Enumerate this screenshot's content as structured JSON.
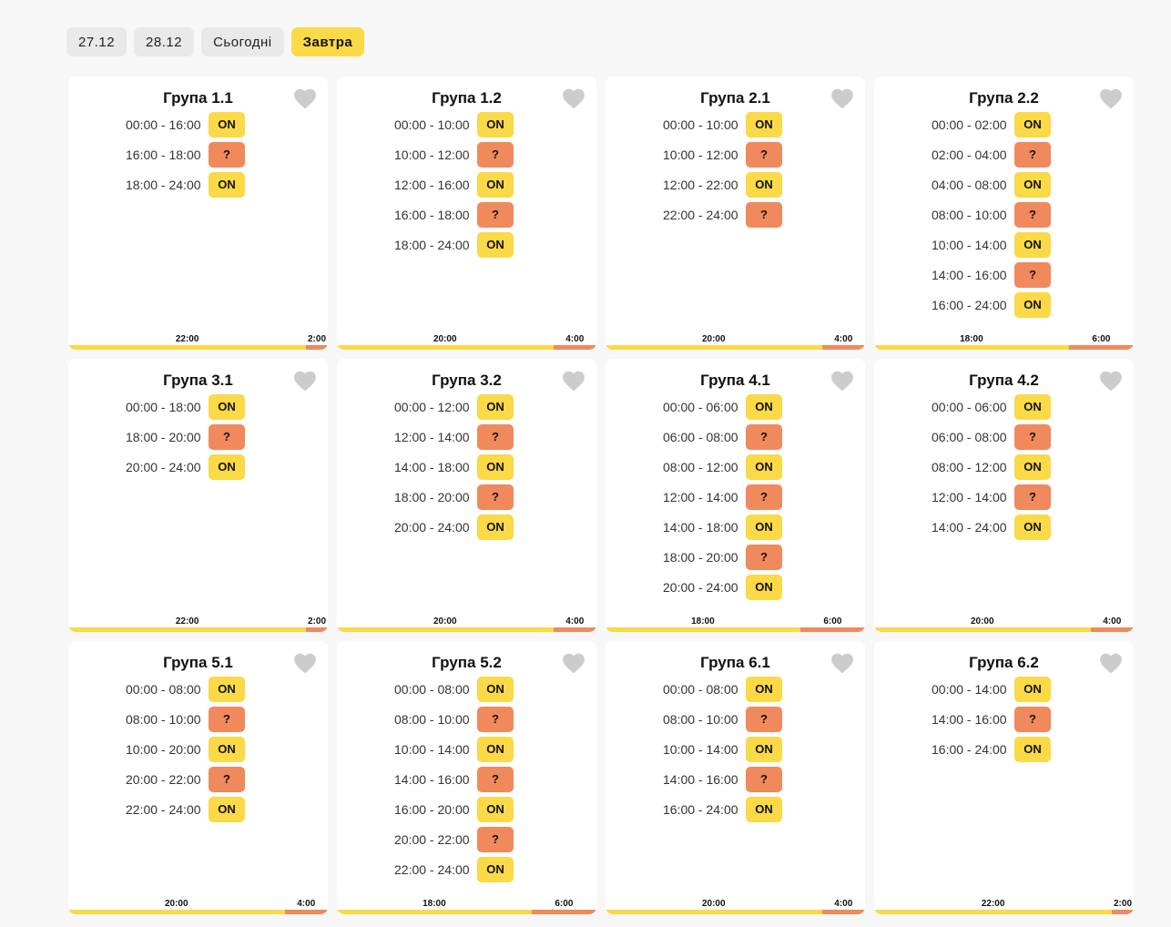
{
  "tabs": [
    {
      "label": "27.12",
      "active": false
    },
    {
      "label": "28.12",
      "active": false
    },
    {
      "label": "Сьогодні",
      "active": false
    },
    {
      "label": "Завтра",
      "active": true
    }
  ],
  "colors": {
    "on": "#fbd947",
    "unknown": "#f0895c",
    "heart": "#cccccc"
  },
  "groups": [
    {
      "title": "Група 1.1",
      "slots": [
        [
          "00:00 - 16:00",
          "ON"
        ],
        [
          "16:00 - 18:00",
          "?"
        ],
        [
          "18:00 - 24:00",
          "ON"
        ]
      ],
      "on_label": "22:00",
      "off_label": "2:00",
      "on_hours": 22,
      "off_hours": 2
    },
    {
      "title": "Група 1.2",
      "slots": [
        [
          "00:00 - 10:00",
          "ON"
        ],
        [
          "10:00 - 12:00",
          "?"
        ],
        [
          "12:00 - 16:00",
          "ON"
        ],
        [
          "16:00 - 18:00",
          "?"
        ],
        [
          "18:00 - 24:00",
          "ON"
        ]
      ],
      "on_label": "20:00",
      "off_label": "4:00",
      "on_hours": 20,
      "off_hours": 4
    },
    {
      "title": "Група 2.1",
      "slots": [
        [
          "00:00 - 10:00",
          "ON"
        ],
        [
          "10:00 - 12:00",
          "?"
        ],
        [
          "12:00 - 22:00",
          "ON"
        ],
        [
          "22:00 - 24:00",
          "?"
        ]
      ],
      "on_label": "20:00",
      "off_label": "4:00",
      "on_hours": 20,
      "off_hours": 4
    },
    {
      "title": "Група 2.2",
      "slots": [
        [
          "00:00 - 02:00",
          "ON"
        ],
        [
          "02:00 - 04:00",
          "?"
        ],
        [
          "04:00 - 08:00",
          "ON"
        ],
        [
          "08:00 - 10:00",
          "?"
        ],
        [
          "10:00 - 14:00",
          "ON"
        ],
        [
          "14:00 - 16:00",
          "?"
        ],
        [
          "16:00 - 24:00",
          "ON"
        ]
      ],
      "on_label": "18:00",
      "off_label": "6:00",
      "on_hours": 18,
      "off_hours": 6
    },
    {
      "title": "Група 3.1",
      "slots": [
        [
          "00:00 - 18:00",
          "ON"
        ],
        [
          "18:00 - 20:00",
          "?"
        ],
        [
          "20:00 - 24:00",
          "ON"
        ]
      ],
      "on_label": "22:00",
      "off_label": "2:00",
      "on_hours": 22,
      "off_hours": 2
    },
    {
      "title": "Група 3.2",
      "slots": [
        [
          "00:00 - 12:00",
          "ON"
        ],
        [
          "12:00 - 14:00",
          "?"
        ],
        [
          "14:00 - 18:00",
          "ON"
        ],
        [
          "18:00 - 20:00",
          "?"
        ],
        [
          "20:00 - 24:00",
          "ON"
        ]
      ],
      "on_label": "20:00",
      "off_label": "4:00",
      "on_hours": 20,
      "off_hours": 4
    },
    {
      "title": "Група 4.1",
      "slots": [
        [
          "00:00 - 06:00",
          "ON"
        ],
        [
          "06:00 - 08:00",
          "?"
        ],
        [
          "08:00 - 12:00",
          "ON"
        ],
        [
          "12:00 - 14:00",
          "?"
        ],
        [
          "14:00 - 18:00",
          "ON"
        ],
        [
          "18:00 - 20:00",
          "?"
        ],
        [
          "20:00 - 24:00",
          "ON"
        ]
      ],
      "on_label": "18:00",
      "off_label": "6:00",
      "on_hours": 18,
      "off_hours": 6
    },
    {
      "title": "Група 4.2",
      "slots": [
        [
          "00:00 - 06:00",
          "ON"
        ],
        [
          "06:00 - 08:00",
          "?"
        ],
        [
          "08:00 - 12:00",
          "ON"
        ],
        [
          "12:00 - 14:00",
          "?"
        ],
        [
          "14:00 - 24:00",
          "ON"
        ]
      ],
      "on_label": "20:00",
      "off_label": "4:00",
      "on_hours": 20,
      "off_hours": 4
    },
    {
      "title": "Група 5.1",
      "slots": [
        [
          "00:00 - 08:00",
          "ON"
        ],
        [
          "08:00 - 10:00",
          "?"
        ],
        [
          "10:00 - 20:00",
          "ON"
        ],
        [
          "20:00 - 22:00",
          "?"
        ],
        [
          "22:00 - 24:00",
          "ON"
        ]
      ],
      "on_label": "20:00",
      "off_label": "4:00",
      "on_hours": 20,
      "off_hours": 4
    },
    {
      "title": "Група 5.2",
      "slots": [
        [
          "00:00 - 08:00",
          "ON"
        ],
        [
          "08:00 - 10:00",
          "?"
        ],
        [
          "10:00 - 14:00",
          "ON"
        ],
        [
          "14:00 - 16:00",
          "?"
        ],
        [
          "16:00 - 20:00",
          "ON"
        ],
        [
          "20:00 - 22:00",
          "?"
        ],
        [
          "22:00 - 24:00",
          "ON"
        ]
      ],
      "on_label": "18:00",
      "off_label": "6:00",
      "on_hours": 18,
      "off_hours": 6
    },
    {
      "title": "Група 6.1",
      "slots": [
        [
          "00:00 - 08:00",
          "ON"
        ],
        [
          "08:00 - 10:00",
          "?"
        ],
        [
          "10:00 - 14:00",
          "ON"
        ],
        [
          "14:00 - 16:00",
          "?"
        ],
        [
          "16:00 - 24:00",
          "ON"
        ]
      ],
      "on_label": "20:00",
      "off_label": "4:00",
      "on_hours": 20,
      "off_hours": 4
    },
    {
      "title": "Група 6.2",
      "slots": [
        [
          "00:00 - 14:00",
          "ON"
        ],
        [
          "14:00 - 16:00",
          "?"
        ],
        [
          "16:00 - 24:00",
          "ON"
        ]
      ],
      "on_label": "22:00",
      "off_label": "2:00",
      "on_hours": 22,
      "off_hours": 2
    }
  ]
}
